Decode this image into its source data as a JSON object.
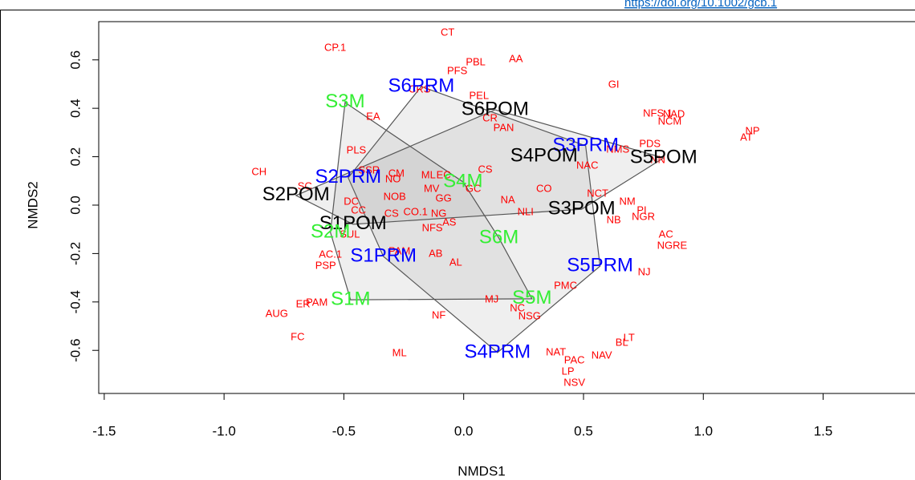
{
  "link": "https://doi.org/10.1002/gcb.1",
  "chart_data": {
    "type": "scatter",
    "xlabel": "NMDS1",
    "ylabel": "NMDS2",
    "xlim": [
      -1.523,
      1.88
    ],
    "ylim": [
      -0.778,
      0.758
    ],
    "xticks": [
      -1.5,
      {
        "value": -1,
        "label": "-1.0"
      },
      -0.5,
      {
        "value": 0,
        "label": "0.0"
      },
      0.5,
      {
        "value": 1,
        "label": "1.0"
      },
      1.5
    ],
    "yticks": [
      -0.6,
      -0.4,
      -0.2,
      {
        "value": 0,
        "label": "0.0"
      },
      0.2,
      0.4,
      0.6
    ],
    "series": [
      {
        "color": "#ff0000",
        "size": "small",
        "labels": [
          "CT",
          "CP.1",
          "PBL",
          "AA",
          "PFS",
          "GI",
          "PEL",
          "CRS",
          "CR",
          "PAN",
          "NFS.1",
          "NAD",
          "NCM",
          "NP",
          "AT",
          "EA",
          "PDS",
          "NMS",
          "NAC",
          "NN",
          "PLS",
          "CH",
          "SSR",
          "NO",
          "CM",
          "ML",
          "EC",
          "CS",
          "MV",
          "GC",
          "NOB",
          "GG",
          "CO",
          "NCT",
          "NM",
          "NA",
          "NLI",
          "SC",
          "CC",
          "DC",
          "CS",
          "CO.1",
          "NG",
          "PI",
          "NB",
          "NGR",
          "AS",
          "NFS",
          "SUL",
          "AC",
          "NGRE",
          "AC.1",
          "AB",
          "PAM",
          "PSP",
          "AL",
          "NJ",
          "PMC",
          "MJ",
          "ER",
          "PAM",
          "AUG",
          "NC",
          "NSG",
          "NF",
          "FC",
          "LT",
          "BL",
          "ML",
          "NAT",
          "PAC",
          "NAV",
          "LP",
          "NSV"
        ],
        "x": [
          -0.067,
          -0.536,
          0.05,
          0.218,
          -0.027,
          0.626,
          0.064,
          -0.184,
          0.11,
          0.167,
          0.81,
          0.877,
          0.86,
          1.205,
          1.18,
          -0.378,
          0.777,
          0.643,
          0.516,
          0.81,
          -0.448,
          -0.854,
          -0.395,
          -0.295,
          -0.281,
          -0.147,
          -0.084,
          0.09,
          -0.134,
          0.04,
          -0.288,
          -0.084,
          0.335,
          0.559,
          0.683,
          0.184,
          0.258,
          -0.663,
          -0.439,
          -0.469,
          -0.301,
          -0.201,
          -0.104,
          0.743,
          0.626,
          0.75,
          -0.06,
          -0.131,
          -0.475,
          0.844,
          0.87,
          -0.556,
          -0.117,
          -0.268,
          -0.576,
          -0.033,
          0.753,
          0.425,
          0.117,
          -0.67,
          -0.613,
          -0.78,
          0.224,
          0.275,
          -0.104,
          -0.693,
          0.69,
          0.66,
          -0.268,
          0.385,
          0.462,
          0.576,
          0.435,
          0.462
        ],
        "values": [
          0.712,
          0.649,
          0.589,
          0.603,
          0.553,
          0.497,
          0.45,
          0.477,
          0.358,
          0.318,
          0.377,
          0.374,
          0.344,
          0.305,
          0.278,
          0.364,
          0.252,
          0.228,
          0.162,
          0.185,
          0.225,
          0.136,
          0.142,
          0.106,
          0.129,
          0.123,
          0.123,
          0.146,
          0.066,
          0.066,
          0.033,
          0.026,
          0.066,
          0.046,
          0.013,
          0.02,
          -0.03,
          0.076,
          -0.023,
          0.013,
          -0.036,
          -0.03,
          -0.036,
          -0.023,
          -0.063,
          -0.05,
          -0.073,
          -0.096,
          -0.123,
          -0.123,
          -0.169,
          -0.205,
          -0.202,
          -0.192,
          -0.252,
          -0.238,
          -0.278,
          -0.334,
          -0.391,
          -0.411,
          -0.404,
          -0.45,
          -0.427,
          -0.46,
          -0.457,
          -0.546,
          -0.55,
          -0.57,
          -0.613,
          -0.609,
          -0.642,
          -0.623,
          -0.689,
          -0.735
        ]
      },
      {
        "color": "#0000ff",
        "size": "large",
        "hull": true,
        "labels": [
          "S6PRM",
          "S3PRM",
          "S2PRM",
          "S1PRM",
          "S5PRM",
          "S4PRM"
        ],
        "x": [
          -0.177,
          0.509,
          -0.482,
          -0.335,
          0.569,
          0.141
        ],
        "values": [
          0.49,
          0.245,
          0.113,
          -0.212,
          -0.252,
          -0.609
        ]
      },
      {
        "color": "#000000",
        "size": "large",
        "hull": true,
        "labels": [
          "S6POM",
          "S4POM",
          "S5POM",
          "S2POM",
          "S1POM",
          "S3POM"
        ],
        "x": [
          0.131,
          0.335,
          0.834,
          -0.7,
          -0.462,
          0.492
        ],
        "values": [
          0.394,
          0.202,
          0.195,
          0.04,
          -0.079,
          -0.017
        ]
      },
      {
        "color": "#33ee33",
        "size": "large",
        "hull": true,
        "labels": [
          "S3M",
          "S4M",
          "S2M",
          "S6M",
          "S1M",
          "S5M"
        ],
        "x": [
          -0.495,
          -0.003,
          -0.556,
          0.147,
          -0.472,
          0.285
        ],
        "values": [
          0.424,
          0.096,
          -0.113,
          -0.136,
          -0.391,
          -0.387
        ]
      }
    ]
  }
}
